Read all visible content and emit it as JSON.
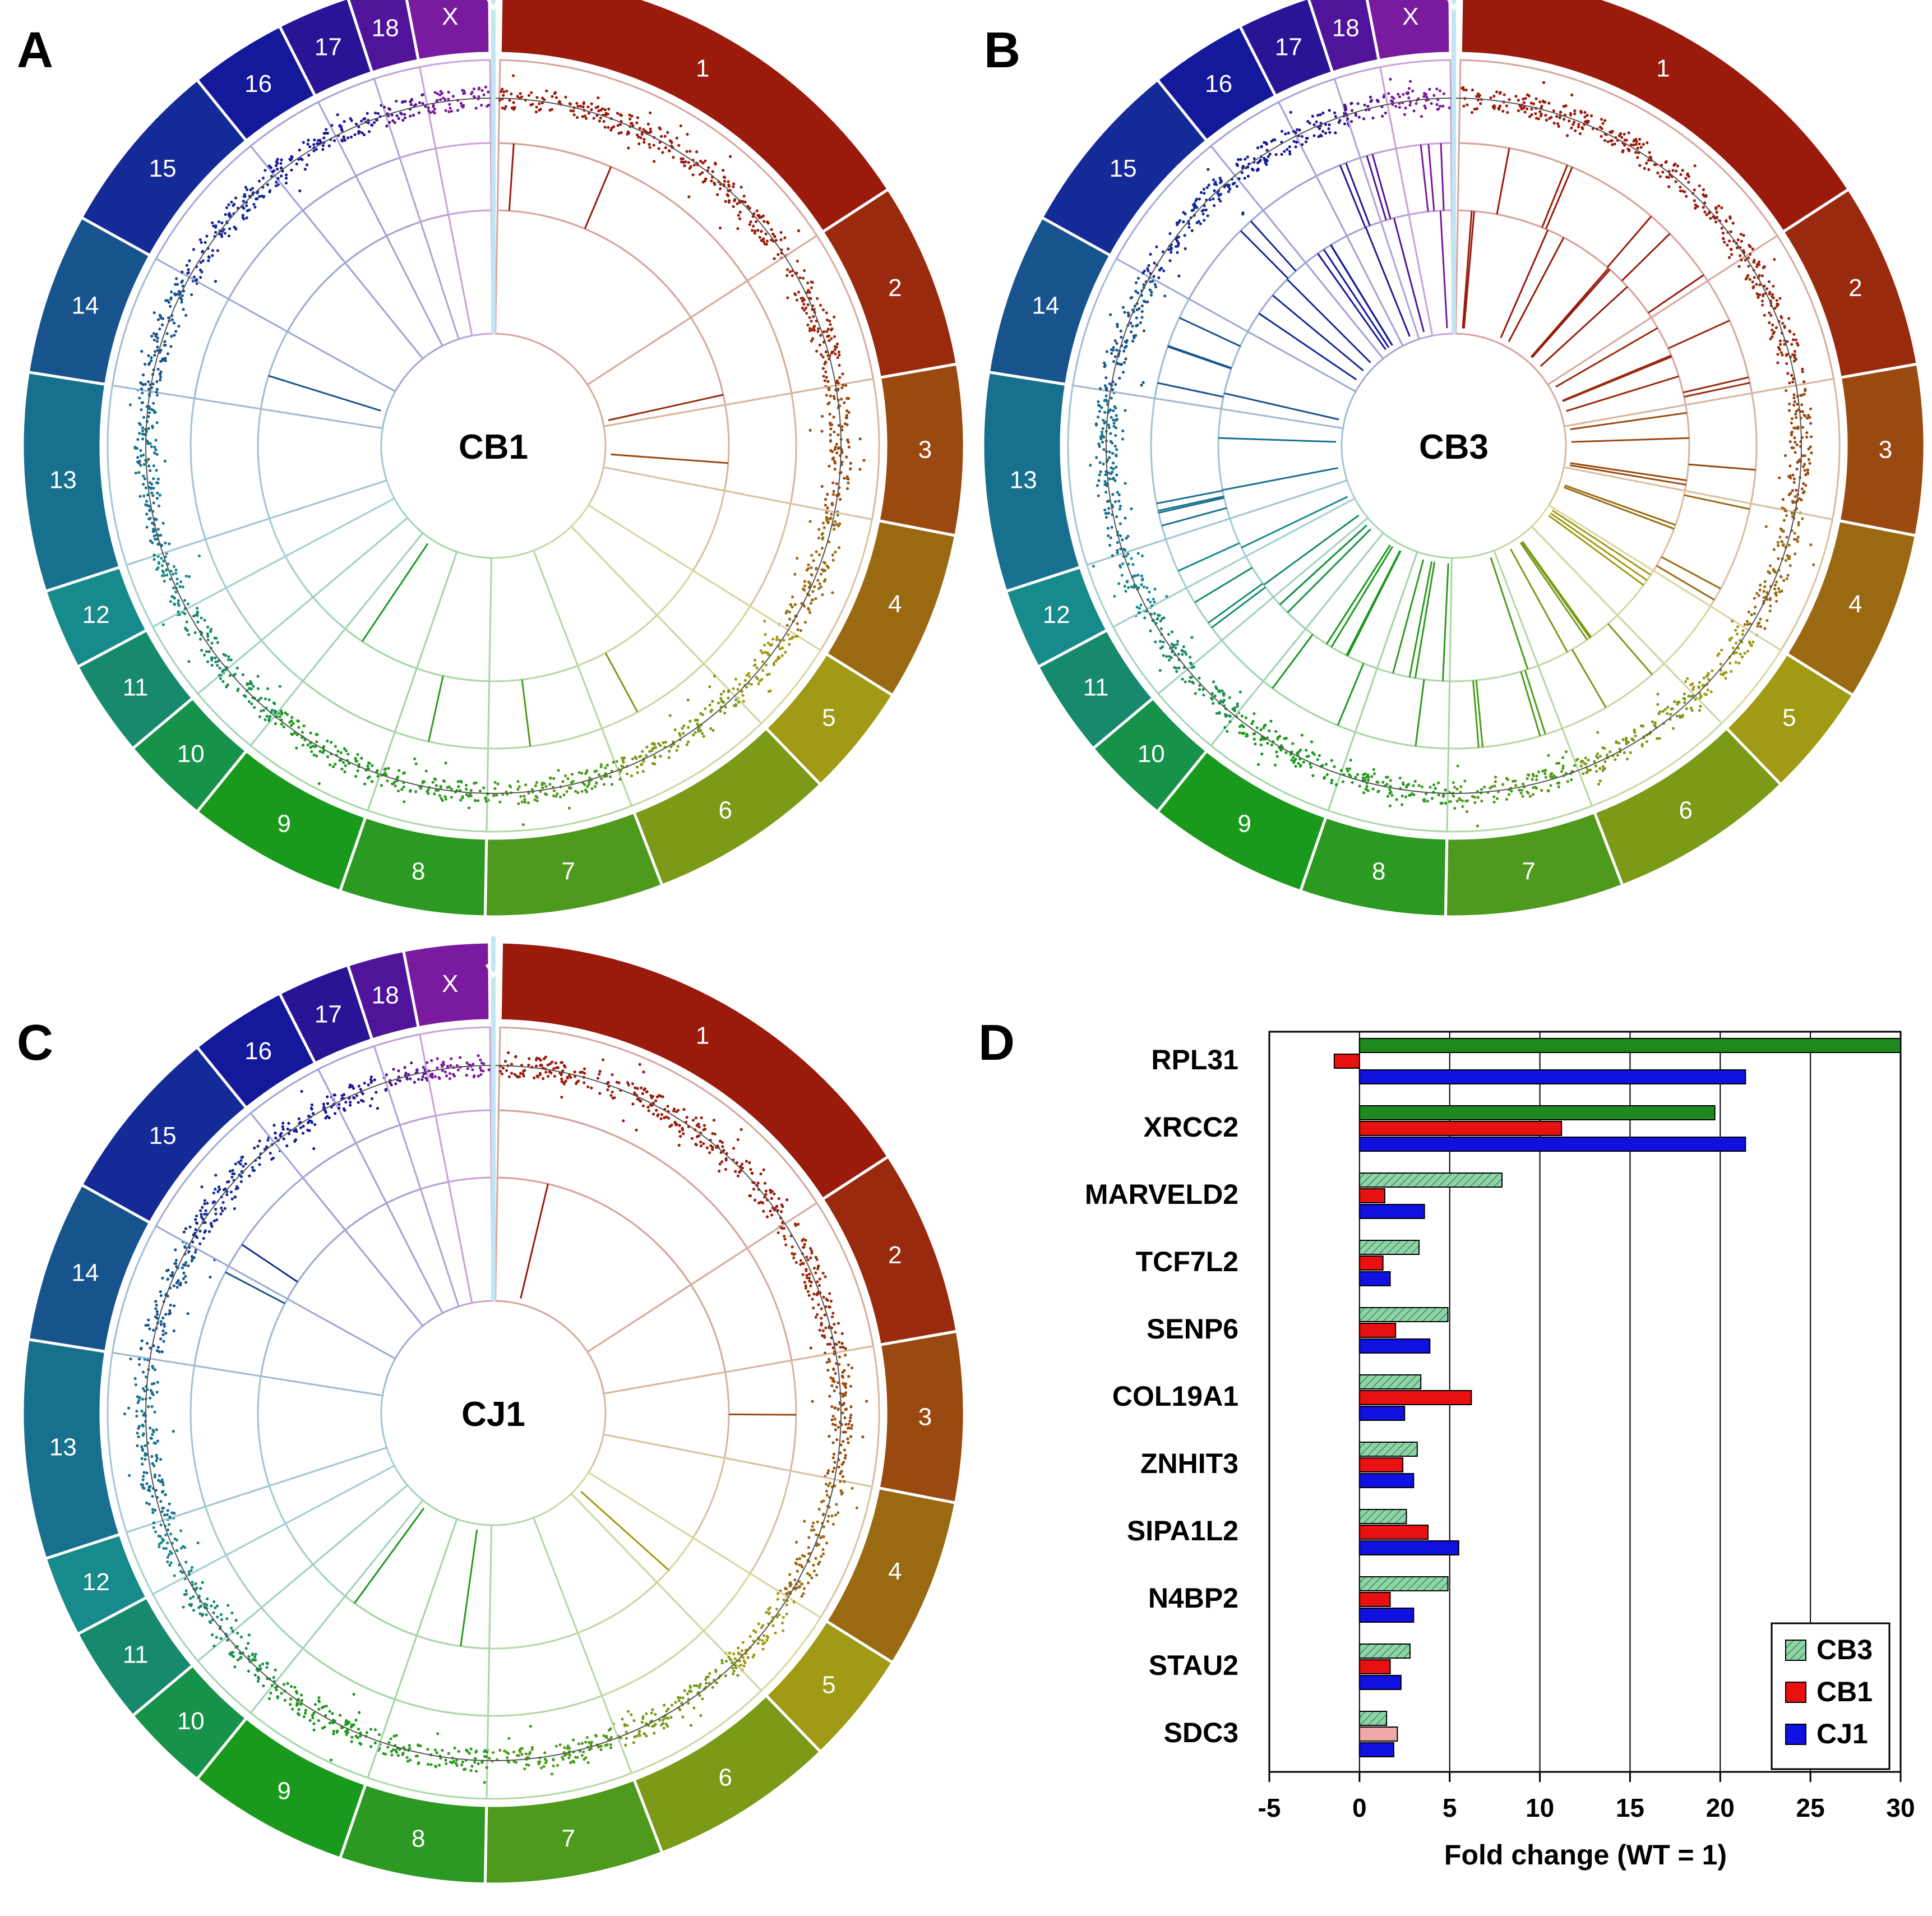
{
  "panels": {
    "A": {
      "letter": "A",
      "sample": "CB1",
      "density": 1
    },
    "B": {
      "letter": "B",
      "sample": "CB3",
      "density": 6
    },
    "C": {
      "letter": "C",
      "sample": "CJ1",
      "density": 1
    },
    "D": {
      "letter": "D"
    }
  },
  "chromosomes": [
    {
      "label": "1",
      "color": "#9a1a0c"
    },
    {
      "label": "2",
      "color": "#9a2a0e"
    },
    {
      "label": "3",
      "color": "#9a4a10"
    },
    {
      "label": "4",
      "color": "#9a6a12"
    },
    {
      "label": "5",
      "color": "#a09a14"
    },
    {
      "label": "6",
      "color": "#7a9a18"
    },
    {
      "label": "7",
      "color": "#4e9a1c"
    },
    {
      "label": "8",
      "color": "#2c9a22"
    },
    {
      "label": "9",
      "color": "#1a9a1c"
    },
    {
      "label": "10",
      "color": "#17924a"
    },
    {
      "label": "11",
      "color": "#178a6e"
    },
    {
      "label": "12",
      "color": "#178a8c"
    },
    {
      "label": "13",
      "color": "#17718e"
    },
    {
      "label": "14",
      "color": "#17548e"
    },
    {
      "label": "15",
      "color": "#142a96"
    },
    {
      "label": "16",
      "color": "#14189a"
    },
    {
      "label": "17",
      "color": "#2a1496"
    },
    {
      "label": "18",
      "color": "#50149a"
    },
    {
      "label": "X",
      "color": "#7a1a9e"
    }
  ],
  "chart_data": {
    "type": "bar",
    "orientation": "horizontal",
    "categories": [
      "RPL31",
      "XRCC2",
      "MARVELD2",
      "TCF7L2",
      "SENP6",
      "COL19A1",
      "ZNHIT3",
      "SIPA1L2",
      "N4BP2",
      "STAU2",
      "SDC3"
    ],
    "series": [
      {
        "name": "CB3",
        "color": "#1e8a1e",
        "hatched_color": "#8fd4a8",
        "values": [
          30,
          19.7,
          7.9,
          3.3,
          4.9,
          3.4,
          3.2,
          2.6,
          4.9,
          2.8,
          1.5
        ]
      },
      {
        "name": "CB1",
        "color": "#e81010",
        "values": [
          -1.4,
          11.2,
          1.4,
          1.3,
          2.0,
          6.2,
          2.4,
          3.8,
          1.7,
          1.7,
          2.1
        ]
      },
      {
        "name": "CJ1",
        "color": "#1010e0",
        "values": [
          21.4,
          21.4,
          3.6,
          1.7,
          3.9,
          2.5,
          3.0,
          5.5,
          3.0,
          2.3,
          1.9
        ]
      }
    ],
    "xlabel": "Fold change (WT = 1)",
    "xlim": [
      -5,
      30
    ],
    "xticks": [
      -5,
      0,
      5,
      10,
      15,
      20,
      25,
      30
    ],
    "xtick_labels": [
      "-5",
      "0",
      "5",
      "10",
      "15",
      "20",
      "25",
      "30"
    ],
    "grid": "vertical",
    "legend": {
      "position": "bottom-right",
      "entries": [
        "CB3",
        "CB1",
        "CJ1"
      ]
    }
  }
}
